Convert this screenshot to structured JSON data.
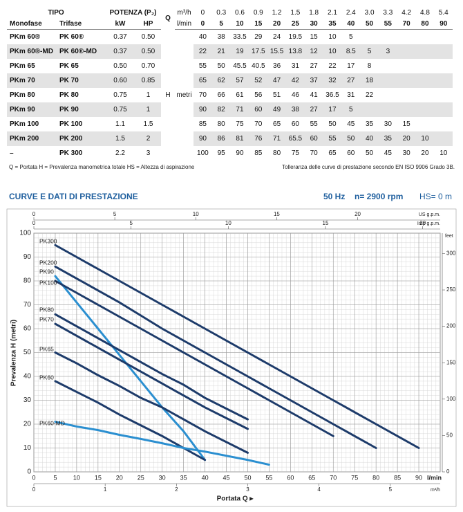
{
  "table": {
    "header": {
      "tipo": "TIPO",
      "potenza": "POTENZA (P₂)",
      "q": "Q",
      "q_unit_1": "m³/h",
      "q_unit_2": "l/min",
      "sub": [
        "Monofase",
        "Trifase",
        "kW",
        "HP"
      ],
      "flow_m3h": [
        "0",
        "0.3",
        "0.6",
        "0.9",
        "1.2",
        "1.5",
        "1.8",
        "2.1",
        "2.4",
        "3.0",
        "3.3",
        "4.2",
        "4.8",
        "5.4"
      ],
      "flow_lmin": [
        0,
        5,
        10,
        15,
        20,
        25,
        30,
        35,
        40,
        50,
        55,
        70,
        80,
        90
      ]
    },
    "h": "H",
    "h_unit": "metri",
    "rows": [
      {
        "monofase": "PKm 60®",
        "trifase": "PK 60®",
        "kw": "0.37",
        "hp": "0.50",
        "h": [
          40,
          38,
          33.5,
          29,
          24,
          19.5,
          15,
          10,
          5
        ]
      },
      {
        "monofase": "PKm 60®-MD",
        "trifase": "PK 60®-MD",
        "kw": "0.37",
        "hp": "0.50",
        "h": [
          22,
          21,
          19,
          17.5,
          15.5,
          13.8,
          12,
          10,
          8.5,
          5,
          3
        ]
      },
      {
        "monofase": "PKm 65",
        "trifase": "PK 65",
        "kw": "0.50",
        "hp": "0.70",
        "h": [
          55,
          50,
          45.5,
          40.5,
          36,
          31,
          27,
          22,
          17,
          8
        ]
      },
      {
        "monofase": "PKm 70",
        "trifase": "PK 70",
        "kw": "0.60",
        "hp": "0.85",
        "h": [
          65,
          62,
          57,
          52,
          47,
          42,
          37,
          32,
          27,
          18
        ]
      },
      {
        "monofase": "PKm 80",
        "trifase": "PK 80",
        "kw": "0.75",
        "hp": "1",
        "h": [
          70,
          66,
          61,
          56,
          51,
          46,
          41,
          36.5,
          31,
          22
        ]
      },
      {
        "monofase": "PKm 90",
        "trifase": "PK 90",
        "kw": "0.75",
        "hp": "1",
        "h": [
          90,
          82,
          71,
          60,
          49,
          38,
          27,
          17,
          5
        ]
      },
      {
        "monofase": "PKm 100",
        "trifase": "PK 100",
        "kw": "1.1",
        "hp": "1.5",
        "h": [
          85,
          80,
          75,
          70,
          65,
          60,
          55,
          50,
          45,
          35,
          30,
          15
        ]
      },
      {
        "monofase": "PKm 200",
        "trifase": "PK 200",
        "kw": "1.5",
        "hp": "2",
        "h": [
          90,
          86,
          81,
          76,
          71,
          65.5,
          60,
          55,
          50,
          40,
          35,
          20,
          10
        ]
      },
      {
        "monofase": "–",
        "trifase": "PK 300",
        "kw": "2.2",
        "hp": "3",
        "h": [
          100,
          95,
          90,
          85,
          80,
          75,
          70,
          65,
          60,
          50,
          45,
          30,
          20,
          10
        ]
      }
    ],
    "note_left": "Q = Portata   H = Prevalenza manometrica totale   HS = Altezza di aspirazione",
    "note_right": "Tolleranza delle curve di prestazione secondo EN ISO 9906 Grado 3B."
  },
  "chart_data": {
    "type": "line",
    "title": "CURVE E DATI DI PRESTAZIONE",
    "frequency": "50 Hz",
    "speed": "n= 2900 rpm",
    "suction": "HS= 0 m",
    "xlabel": "Portata Q ▸",
    "ylabel": "Prevalenza H (metri)",
    "x_unit": "l/min",
    "xlim": [
      0,
      95
    ],
    "xticks": [
      0,
      5,
      10,
      15,
      20,
      25,
      30,
      35,
      40,
      45,
      50,
      55,
      60,
      65,
      70,
      75,
      80,
      85,
      90
    ],
    "ylim": [
      0,
      100
    ],
    "yticks": [
      0,
      10,
      20,
      30,
      40,
      50,
      60,
      70,
      80,
      90,
      100
    ],
    "grid": true,
    "minor_grid": {
      "x": 1,
      "y": 2
    },
    "x_us": {
      "label": "US g.p.m.",
      "xlim": [
        0,
        25.1
      ],
      "xticks": [
        0,
        5,
        10,
        15,
        20
      ]
    },
    "x_imp": {
      "label": "Imp g.p.m.",
      "xlim": [
        0,
        20.9
      ],
      "xticks": [
        0,
        5,
        10,
        15,
        20
      ]
    },
    "x_m3h": {
      "label": "m³/h",
      "xlim": [
        0,
        5.7
      ],
      "xticks": [
        0,
        1,
        2,
        3,
        4,
        5
      ]
    },
    "y_feet": {
      "label": "feet",
      "ylim": [
        0,
        328
      ],
      "yticks": [
        0,
        50,
        100,
        150,
        200,
        250,
        300
      ]
    },
    "series": [
      {
        "name": "PK300",
        "color": "#1d3b6a",
        "x": [
          5,
          10,
          15,
          20,
          25,
          30,
          35,
          40,
          50,
          55,
          70,
          80,
          90
        ],
        "values": [
          95,
          90,
          85,
          80,
          75,
          70,
          65,
          60,
          50,
          45,
          30,
          20,
          10
        ]
      },
      {
        "name": "PK200",
        "color": "#1d3b6a",
        "x": [
          5,
          10,
          15,
          20,
          25,
          30,
          35,
          40,
          50,
          55,
          70,
          80
        ],
        "values": [
          86,
          81,
          76,
          71,
          65.5,
          60,
          55,
          50,
          40,
          35,
          20,
          10
        ]
      },
      {
        "name": "PK90",
        "color": "#2b8fd0",
        "x": [
          5,
          10,
          15,
          20,
          25,
          30,
          35,
          40
        ],
        "values": [
          82,
          71,
          60,
          49,
          38,
          27,
          17,
          5
        ]
      },
      {
        "name": "PK100",
        "color": "#1d3b6a",
        "x": [
          5,
          10,
          15,
          20,
          25,
          30,
          35,
          40,
          50,
          55,
          70
        ],
        "values": [
          80,
          75,
          70,
          65,
          60,
          55,
          50,
          45,
          35,
          30,
          15
        ]
      },
      {
        "name": "PK80",
        "color": "#1d3b6a",
        "x": [
          5,
          10,
          15,
          20,
          25,
          30,
          35,
          40,
          50
        ],
        "values": [
          66,
          61,
          56,
          51,
          46,
          41,
          36.5,
          31,
          22
        ]
      },
      {
        "name": "PK70",
        "color": "#1d3b6a",
        "x": [
          5,
          10,
          15,
          20,
          25,
          30,
          35,
          40,
          50
        ],
        "values": [
          62,
          57,
          52,
          47,
          42,
          37,
          32,
          27,
          18
        ]
      },
      {
        "name": "PK65",
        "color": "#1d3b6a",
        "x": [
          5,
          10,
          15,
          20,
          25,
          30,
          35,
          40,
          50
        ],
        "values": [
          50,
          45.5,
          40.5,
          36,
          31,
          27,
          22,
          17,
          8
        ]
      },
      {
        "name": "PK60",
        "color": "#1d3b6a",
        "x": [
          5,
          10,
          15,
          20,
          25,
          30,
          35,
          40
        ],
        "values": [
          38,
          33.5,
          29,
          24,
          19.5,
          15,
          10,
          5
        ]
      },
      {
        "name": "PK60-MD",
        "color": "#2b8fd0",
        "x": [
          5,
          10,
          15,
          20,
          25,
          30,
          35,
          40,
          50,
          55
        ],
        "values": [
          21,
          19,
          17.5,
          15.5,
          13.8,
          12,
          10,
          8.5,
          5,
          3
        ]
      }
    ]
  }
}
